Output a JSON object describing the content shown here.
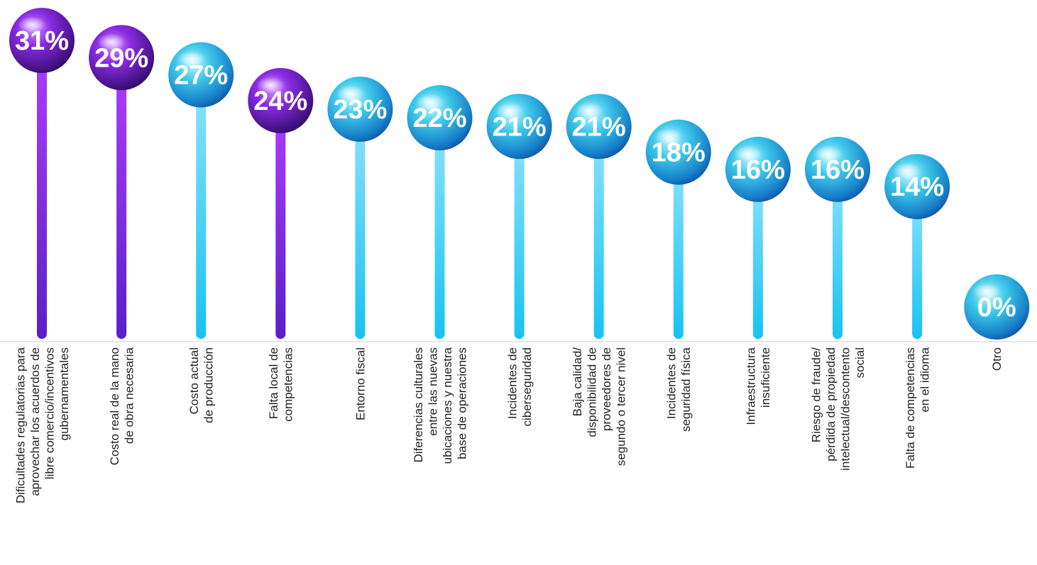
{
  "chart_data": {
    "type": "lollipop",
    "title": "",
    "xlabel": "",
    "ylabel": "",
    "ylim": [
      0,
      31
    ],
    "grid": false,
    "legend": "none",
    "categories": [
      [
        "Dificultades regulatorias para",
        "aprovechar los acuerdos de",
        "libre comercio/incentivos",
        "gubernamentales"
      ],
      [
        "Costo real de la mano",
        "de obra necesaria"
      ],
      [
        "Costo actual",
        "de producción"
      ],
      [
        "Falta local de",
        "competencias"
      ],
      [
        "Entorno fiscal"
      ],
      [
        "Diferencias culturales",
        "entre las nuevas",
        "ubicaciones y nuestra",
        "base de operaciones"
      ],
      [
        "Incidentes de",
        "ciberseguridad"
      ],
      [
        "Baja calidad/",
        "disponibilidad de",
        "proveedores de",
        "segundo o tercer nivel"
      ],
      [
        "Incidentes de",
        "seguridad física"
      ],
      [
        "Infraestructura",
        "insuficiente"
      ],
      [
        "Riesgo de fraude/",
        "pérdida de propiedad",
        "intelectual/descontento",
        "social"
      ],
      [
        "Falta de competencias",
        "en el idioma"
      ],
      [
        "Otro"
      ]
    ],
    "values": [
      31,
      29,
      27,
      24,
      23,
      22,
      21,
      21,
      18,
      16,
      16,
      14,
      0
    ],
    "value_labels": [
      "31%",
      "29%",
      "27%",
      "24%",
      "23%",
      "22%",
      "21%",
      "21%",
      "18%",
      "16%",
      "16%",
      "14%",
      "0%"
    ],
    "highlight": [
      true,
      true,
      false,
      true,
      false,
      false,
      false,
      false,
      false,
      false,
      false,
      false,
      false
    ],
    "colors": {
      "highlight_stem_top": "#b13cff",
      "highlight_stem_bottom": "#5a1fc8",
      "highlight_ball": "#6a22c4",
      "normal_stem_top": "#8fe3fb",
      "normal_stem_bottom": "#18c2f3",
      "normal_ball": "#1ea6d8",
      "axis": "#cccccc",
      "text": "#222222"
    }
  }
}
